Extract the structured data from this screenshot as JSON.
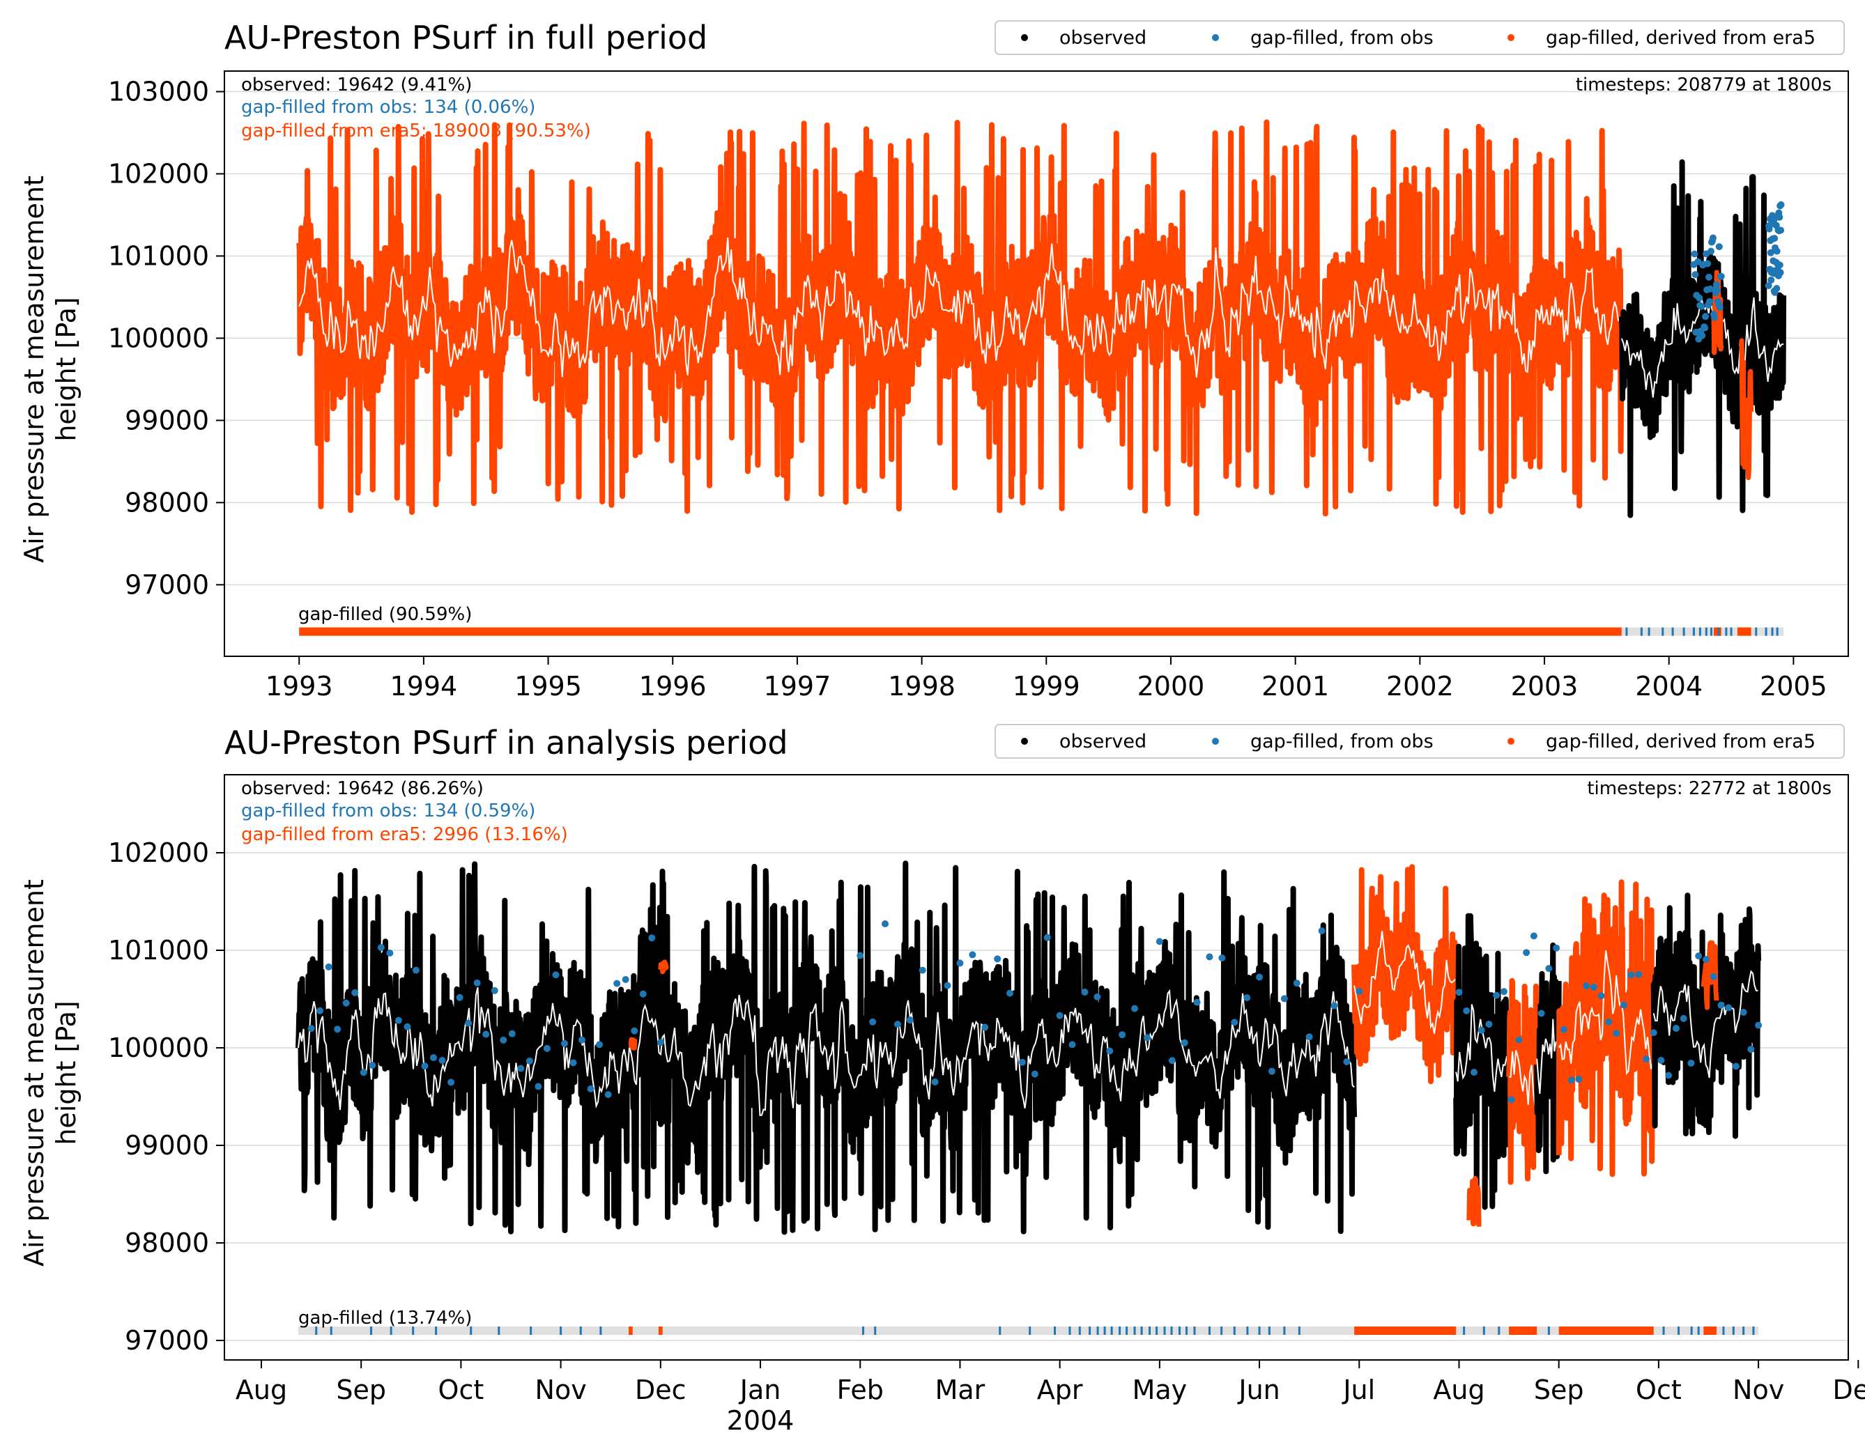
{
  "colors": {
    "observed": "#000000",
    "gap_obs": "#1f77b4",
    "gap_era5": "#ff4500",
    "mean_line": "#ffffff",
    "gap_band": "#e0e0e0",
    "grid": "#d9d9d9"
  },
  "chart_data": [
    {
      "type": "scatter",
      "title": "AU-Preston PSurf in full period",
      "ylabel": "Air pressure at measurement height [Pa]",
      "ylabel_lines": [
        "Air pressure at measurement",
        "height [Pa]"
      ],
      "xlim": [
        1992.4,
        2005.44
      ],
      "ylim": [
        96130,
        103250
      ],
      "x_ticks": [
        1993,
        1994,
        1995,
        1996,
        1997,
        1998,
        1999,
        2000,
        2001,
        2002,
        2003,
        2004,
        2005
      ],
      "x_tick_labels": [
        "1993",
        "1994",
        "1995",
        "1996",
        "1997",
        "1998",
        "1999",
        "2000",
        "2001",
        "2002",
        "2003",
        "2004",
        "2005"
      ],
      "y_ticks": [
        97000,
        98000,
        99000,
        100000,
        101000,
        102000,
        103000
      ],
      "y_tick_labels": [
        "97000",
        "98000",
        "99000",
        "100000",
        "101000",
        "102000",
        "103000"
      ],
      "legend": {
        "placement": "top-right",
        "entries": [
          "observed",
          "gap-filled, from obs",
          "gap-filled, derived from era5"
        ]
      },
      "annotations": {
        "observed": "observed: 19642 (9.41%)",
        "gap_obs": "gap-filled from obs: 134 (0.06%)",
        "gap_era5": "gap-filled from era5: 189003 (90.53%)",
        "timesteps": "timesteps: 208779 at 1800s",
        "gap_filled": "gap-filled (90.59%)"
      },
      "segments": [
        {
          "series": "gap-filled, derived from era5",
          "x0": 1993.0,
          "x1": 2003.62,
          "mean": 100250,
          "amp": 900,
          "spike": 2400,
          "seed": 11
        },
        {
          "series": "observed",
          "x0": 2003.62,
          "x1": 2004.92,
          "mean": 99950,
          "amp": 800,
          "spike": 2200,
          "seed": 23
        }
      ],
      "overlays": [
        {
          "series": "gap-filled, derived from era5",
          "x0": 2004.36,
          "x1": 2004.42,
          "mean": 100600,
          "amp": 600,
          "seed": 31
        },
        {
          "series": "gap-filled, derived from era5",
          "x0": 2004.58,
          "x1": 2004.66,
          "mean": 99300,
          "amp": 900,
          "seed": 37
        },
        {
          "series": "gap-filled, from obs",
          "x0": 2004.2,
          "x1": 2004.42,
          "mean": 100500,
          "amp": 600,
          "seed": 41,
          "sparse": true
        },
        {
          "series": "gap-filled, from obs",
          "x0": 2004.8,
          "x1": 2004.9,
          "mean": 100800,
          "amp": 600,
          "seed": 43,
          "sparse": true
        }
      ],
      "gap_bar": {
        "y": 96430,
        "band": [
          1993.0,
          2004.92
        ],
        "era5": [
          [
            1993.0,
            2003.62
          ],
          [
            2004.55,
            2004.66
          ],
          [
            2004.36,
            2004.42
          ]
        ],
        "obs_ticks": [
          2003.66,
          2003.78,
          2003.84,
          2003.95,
          2004.03,
          2004.12,
          2004.2,
          2004.25,
          2004.3,
          2004.34,
          2004.4,
          2004.46,
          2004.5,
          2004.7,
          2004.78,
          2004.83,
          2004.87
        ]
      }
    },
    {
      "type": "scatter",
      "title": "AU-Preston PSurf in analysis period",
      "ylabel": "Air pressure at measurement height [Pa]",
      "ylabel_lines": [
        "Air pressure at measurement",
        "height [Pa]"
      ],
      "xlim": [
        -0.37,
        15.9
      ],
      "ylim": [
        96800,
        102800
      ],
      "x_ticks": [
        0,
        1,
        2,
        3,
        4,
        5,
        6,
        7,
        8,
        9,
        10,
        11,
        12,
        13,
        14,
        15,
        16
      ],
      "x_tick_labels": [
        "Aug",
        "Sep",
        "Oct",
        "Nov",
        "Dec",
        "Jan",
        "Feb",
        "Mar",
        "Apr",
        "May",
        "Jun",
        "Jul",
        "Aug",
        "Sep",
        "Oct",
        "Nov",
        "Dec"
      ],
      "x_tick_sublabels": {
        "5": "2004"
      },
      "y_ticks": [
        97000,
        98000,
        99000,
        100000,
        101000,
        102000
      ],
      "y_tick_labels": [
        "97000",
        "98000",
        "99000",
        "100000",
        "101000",
        "102000"
      ],
      "legend": {
        "placement": "top-right",
        "entries": [
          "observed",
          "gap-filled, from obs",
          "gap-filled, derived from era5"
        ]
      },
      "annotations": {
        "observed": "observed: 19642 (86.26%)",
        "gap_obs": "gap-filled from obs: 134 (0.59%)",
        "gap_era5": "gap-filled from era5: 2996 (13.16%)",
        "timesteps": "timesteps: 22772 at 1800s",
        "gap_filled": "gap-filled (13.74%)"
      },
      "segments": [
        {
          "series": "observed",
          "x0": 0.37,
          "x1": 10.95,
          "mean": 100000,
          "amp": 800,
          "spike": 1900,
          "seed": 5
        },
        {
          "series": "gap-filled, derived from era5",
          "x0": 10.95,
          "x1": 11.97,
          "mean": 100600,
          "amp": 700,
          "spike": 1300,
          "seed": 7
        },
        {
          "series": "observed",
          "x0": 11.97,
          "x1": 12.5,
          "mean": 99800,
          "amp": 900,
          "spike": 1800,
          "seed": 13
        },
        {
          "series": "gap-filled, derived from era5",
          "x0": 12.5,
          "x1": 12.78,
          "mean": 99700,
          "amp": 900,
          "spike": 1500,
          "seed": 17
        },
        {
          "series": "observed",
          "x0": 12.78,
          "x1": 13.0,
          "mean": 99900,
          "amp": 800,
          "spike": 1200,
          "seed": 19
        },
        {
          "series": "gap-filled, derived from era5",
          "x0": 13.0,
          "x1": 13.95,
          "mean": 100200,
          "amp": 900,
          "spike": 1500,
          "seed": 29
        },
        {
          "series": "observed",
          "x0": 13.95,
          "x1": 15.0,
          "mean": 100300,
          "amp": 800,
          "spike": 1300,
          "seed": 31
        }
      ],
      "overlays": [
        {
          "series": "gap-filled, derived from era5",
          "x0": 4.0,
          "x1": 4.06,
          "mean": 100850,
          "amp": 60,
          "seed": 51
        },
        {
          "series": "gap-filled, derived from era5",
          "x0": 3.7,
          "x1": 3.74,
          "mean": 100050,
          "amp": 60,
          "seed": 53
        },
        {
          "series": "gap-filled, derived from era5",
          "x0": 12.1,
          "x1": 12.2,
          "mean": 98500,
          "amp": 300,
          "seed": 55
        },
        {
          "series": "gap-filled, derived from era5",
          "x0": 14.45,
          "x1": 14.58,
          "mean": 100700,
          "amp": 400,
          "seed": 57
        },
        {
          "series": "gap-filled, from obs",
          "x0": 0.5,
          "x1": 4.0,
          "mean": 100200,
          "amp": 700,
          "seed": 61,
          "sparse": true
        },
        {
          "series": "gap-filled, from obs",
          "x0": 6.0,
          "x1": 11.0,
          "mean": 100400,
          "amp": 700,
          "seed": 63,
          "sparse": true
        },
        {
          "series": "gap-filled, from obs",
          "x0": 12.0,
          "x1": 15.0,
          "mean": 100300,
          "amp": 700,
          "seed": 65,
          "sparse": true
        }
      ],
      "gap_bar": {
        "y": 97100,
        "band": [
          0.37,
          15.0
        ],
        "era5": [
          [
            3.68,
            3.72
          ],
          [
            3.98,
            4.02
          ],
          [
            10.95,
            11.97
          ],
          [
            12.5,
            12.78
          ],
          [
            13.0,
            13.95
          ],
          [
            14.45,
            14.58
          ]
        ],
        "obs_ticks": [
          0.55,
          0.7,
          1.1,
          1.3,
          1.52,
          1.75,
          2.1,
          2.38,
          2.7,
          3.0,
          3.2,
          3.4,
          6.03,
          6.15,
          7.4,
          7.7,
          7.95,
          8.1,
          8.2,
          8.3,
          8.38,
          8.45,
          8.52,
          8.6,
          8.67,
          8.75,
          8.82,
          8.9,
          8.97,
          9.05,
          9.12,
          9.2,
          9.27,
          9.35,
          9.5,
          9.62,
          9.75,
          9.88,
          10.0,
          10.1,
          10.25,
          10.4,
          12.05,
          12.25,
          12.4,
          12.9,
          14.05,
          14.2,
          14.33,
          14.4,
          14.65,
          14.75,
          14.85,
          14.95
        ]
      }
    }
  ]
}
